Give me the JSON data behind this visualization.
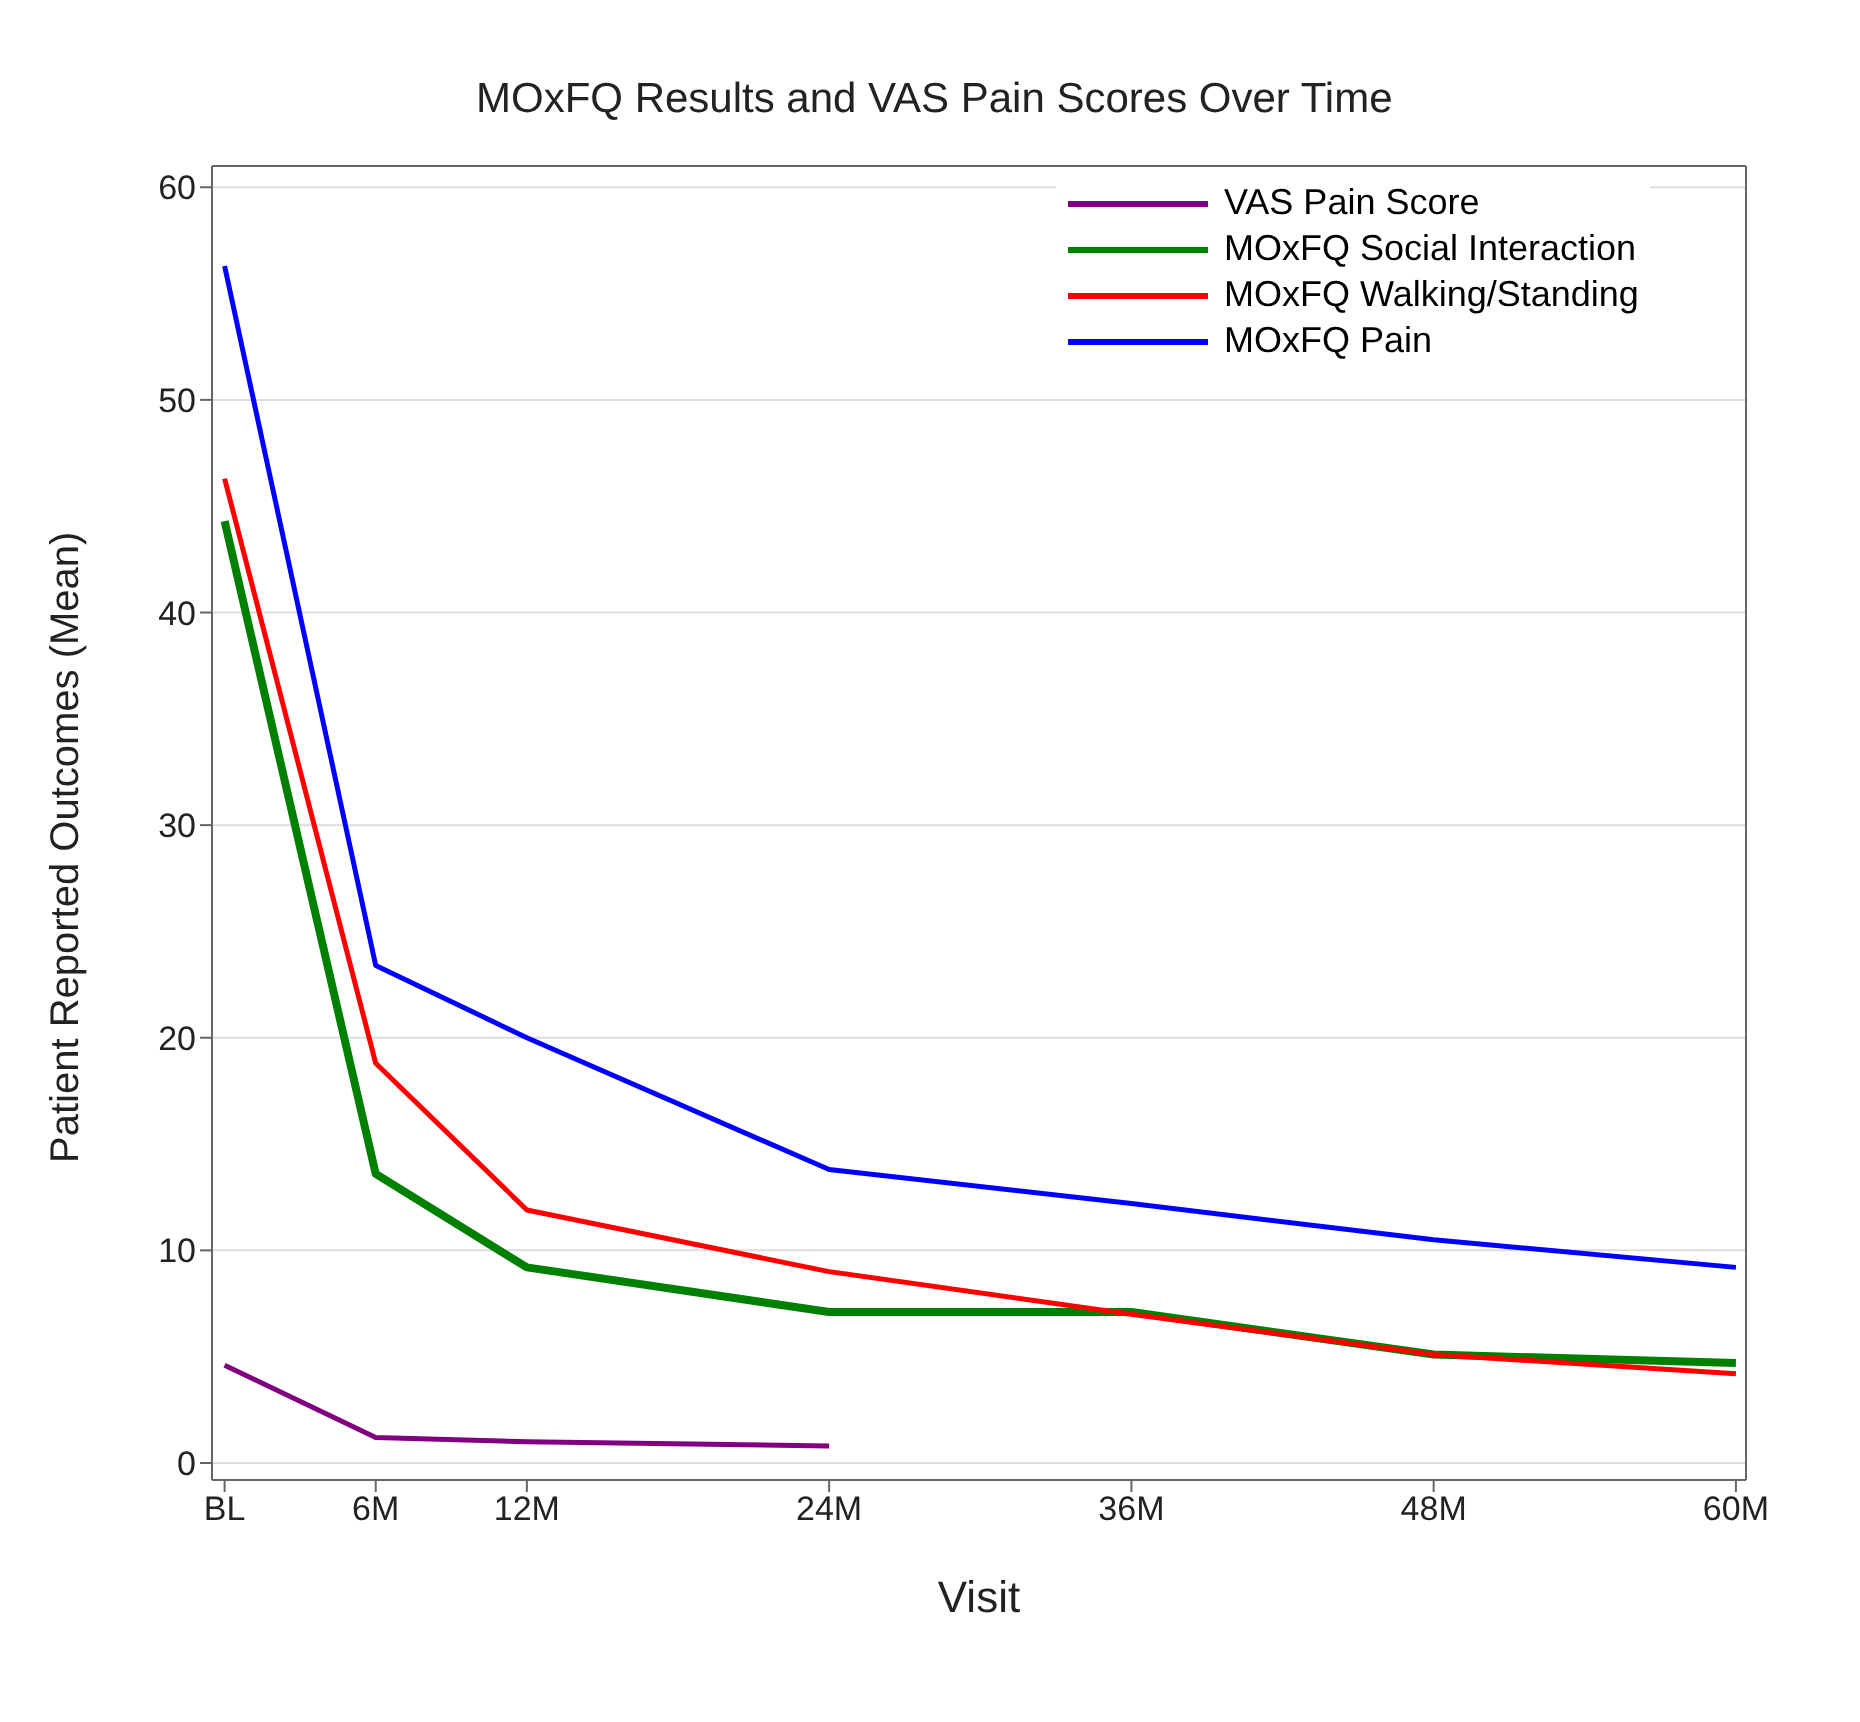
{
  "chart_data": {
    "type": "line",
    "title": "MOxFQ Results and VAS Pain Scores Over Time",
    "xlabel": "Visit",
    "ylabel": "Patient Reported Outcomes (Mean)",
    "x": [
      0,
      6,
      12,
      24,
      36,
      48,
      60
    ],
    "series": [
      {
        "name": "VAS Pain Score",
        "color": "#800080",
        "values": [
          4.6,
          1.2,
          1.0,
          0.8,
          null,
          null,
          null
        ]
      },
      {
        "name": "MOxFQ Social Interaction",
        "color": "#008000",
        "values": [
          44.3,
          13.6,
          9.2,
          7.1,
          7.1,
          5.1,
          4.7
        ]
      },
      {
        "name": "MOxFQ Walking/Standing",
        "color": "#ff0000",
        "values": [
          46.3,
          18.8,
          11.9,
          9.0,
          7.0,
          5.1,
          4.2
        ]
      },
      {
        "name": "MOxFQ Pain",
        "color": "#0000ff",
        "values": [
          56.3,
          23.4,
          20.0,
          13.8,
          12.2,
          10.5,
          9.2
        ]
      }
    ],
    "xlim": [
      -0.5,
      60.4
    ],
    "xticks": [
      {
        "value": 0,
        "label": "BL"
      },
      {
        "value": 6,
        "label": "6M"
      },
      {
        "value": 12,
        "label": "12M"
      },
      {
        "value": 24,
        "label": "24M"
      },
      {
        "value": 36,
        "label": "36M"
      },
      {
        "value": 48,
        "label": "48M"
      },
      {
        "value": 60,
        "label": "60M"
      }
    ],
    "ylim": [
      -0.8,
      61
    ],
    "yticks": [
      0,
      10,
      20,
      30,
      40,
      50,
      60
    ],
    "grid": "y",
    "legend": "top right",
    "marker": "none",
    "line_style": "solid"
  }
}
